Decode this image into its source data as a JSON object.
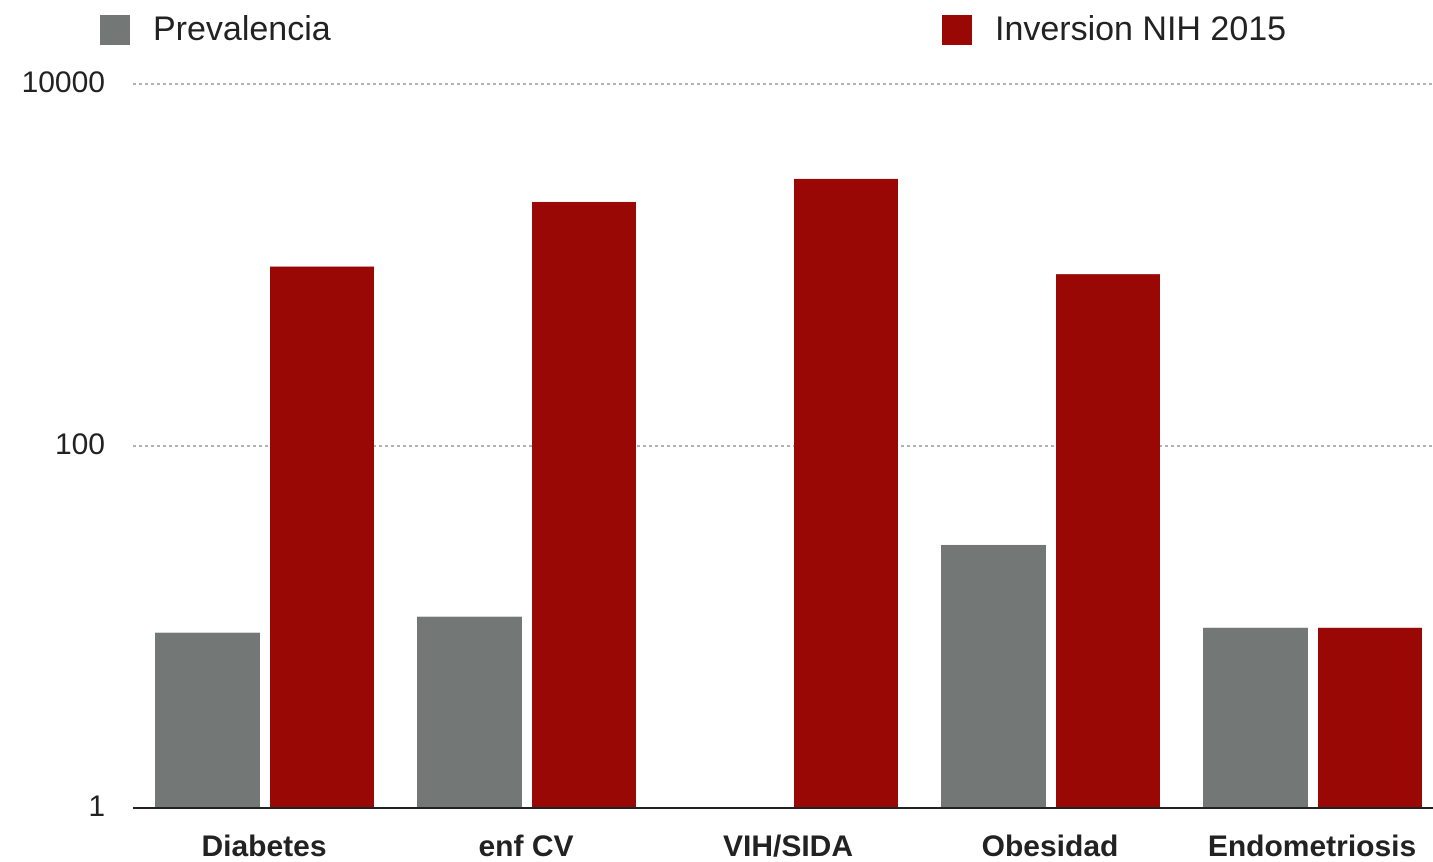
{
  "chart_data": {
    "type": "bar",
    "categories": [
      "Diabetes",
      "enf CV",
      "VIH/SIDA",
      "Obesidad",
      "Endometriosis"
    ],
    "series": [
      {
        "name": "Prevalencia",
        "color": "#737775",
        "values": [
          9.3,
          11.4,
          null,
          28.4,
          9.9
        ]
      },
      {
        "name": "Inversion NIH 2015",
        "color": "#990805",
        "values": [
          980,
          2230,
          2990,
          890,
          9.9
        ]
      }
    ],
    "ylim": [
      1,
      10000
    ],
    "yticks": [
      1,
      100,
      10000
    ],
    "log_scale": true,
    "grid": true,
    "legend": "top"
  }
}
